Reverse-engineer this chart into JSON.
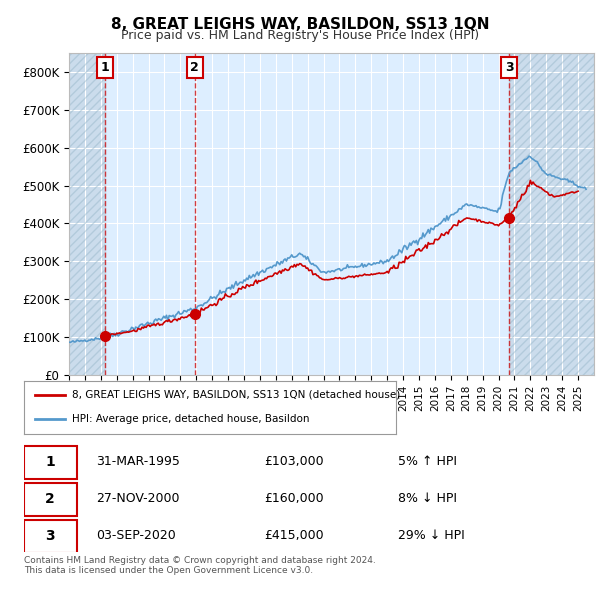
{
  "title": "8, GREAT LEIGHS WAY, BASILDON, SS13 1QN",
  "subtitle": "Price paid vs. HM Land Registry's House Price Index (HPI)",
  "ylim": [
    0,
    850000
  ],
  "yticks": [
    0,
    100000,
    200000,
    300000,
    400000,
    500000,
    600000,
    700000,
    800000
  ],
  "ytick_labels": [
    "£0",
    "£100K",
    "£200K",
    "£300K",
    "£400K",
    "£500K",
    "£600K",
    "£700K",
    "£800K"
  ],
  "xlim_start": 1993.0,
  "xlim_end": 2026.0,
  "sale_color": "#cc0000",
  "hpi_color": "#5599cc",
  "sales": [
    {
      "date": 1995.25,
      "price": 103000,
      "label": "1"
    },
    {
      "date": 2000.9,
      "price": 160000,
      "label": "2"
    },
    {
      "date": 2020.67,
      "price": 415000,
      "label": "3"
    }
  ],
  "legend_sale_label": "8, GREAT LEIGHS WAY, BASILDON, SS13 1QN (detached house)",
  "legend_hpi_label": "HPI: Average price, detached house, Basildon",
  "table_rows": [
    {
      "label": "1",
      "date": "31-MAR-1995",
      "price": "£103,000",
      "change": "5% ↑ HPI"
    },
    {
      "label": "2",
      "date": "27-NOV-2000",
      "price": "£160,000",
      "change": "8% ↓ HPI"
    },
    {
      "label": "3",
      "date": "03-SEP-2020",
      "price": "£415,000",
      "change": "29% ↓ HPI"
    }
  ],
  "footnote": "Contains HM Land Registry data © Crown copyright and database right 2024.\nThis data is licensed under the Open Government Licence v3.0.",
  "background_color": "#ffffff",
  "plot_bg_color": "#ddeeff"
}
